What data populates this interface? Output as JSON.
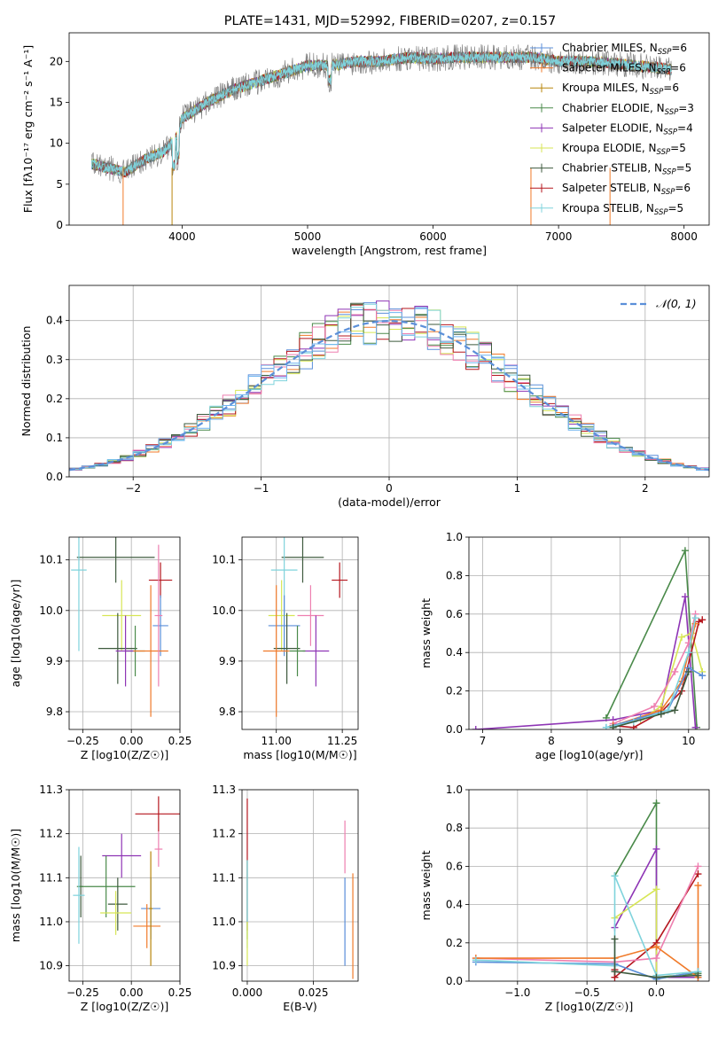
{
  "figure_title": "PLATE=1431, MJD=52992, FIBERID=0207, z=0.157",
  "colors": {
    "Chabrier MILES": "#5b8fd9",
    "Salpeter MILES": "#f07a2a",
    "Kroupa MILES": "#b8860b",
    "Chabrier ELODIE": "#4a8a4a",
    "Salpeter ELODIE": "#8e35b5",
    "Kroupa ELODIE": "#d7e655",
    "Chabrier STELIB": "#3e5a3e",
    "Salpeter STELIB": "#b5161e",
    "Kroupa STELIB": "#7fd3dc",
    "extra_pink": "#ee7fb0",
    "extra_lightblue": "#6fb4f0",
    "data_gray": "#777777"
  },
  "chart_data": [
    {
      "type": "line",
      "panel": "spectrum",
      "title": "PLATE=1431, MJD=52992, FIBERID=0207, z=0.157",
      "xlabel": "wavelength [Angstrom, rest frame]",
      "ylabel": "Flux [fλ10⁻¹⁷ erg cm⁻² s⁻¹ A⁻¹]",
      "xlim": [
        3100,
        8200
      ],
      "ylim": [
        0,
        23.5
      ],
      "xticks": [
        4000,
        5000,
        6000,
        7000,
        8000
      ],
      "yticks": [
        0,
        5,
        10,
        15,
        20
      ],
      "grid": false,
      "legend_position": "top-right",
      "legend": [
        "Chabrier MILES, N_SSP=6",
        "Salpeter MILES, N_SSP=6",
        "Kroupa MILES, N_SSP=6",
        "Chabrier ELODIE, N_SSP=3",
        "Salpeter ELODIE, N_SSP=4",
        "Kroupa ELODIE, N_SSP=5",
        "Chabrier STELIB, N_SSP=5",
        "Salpeter STELIB, N_SSP=6",
        "Kroupa STELIB, N_SSP=5"
      ],
      "legend_base": [
        "Chabrier MILES, N",
        "Salpeter MILES, N",
        "Kroupa MILES, N",
        "Chabrier ELODIE, N",
        "Salpeter ELODIE, N",
        "Kroupa ELODIE, N",
        "Chabrier STELIB, N",
        "Salpeter STELIB, N",
        "Kroupa STELIB, N"
      ],
      "legend_n": [
        "=6",
        "=6",
        "=6",
        "=3",
        "=4",
        "=5",
        "=5",
        "=6",
        "=5"
      ],
      "legend_sub": "SSP",
      "continuum": {
        "x": [
          3280,
          3400,
          3550,
          3700,
          3850,
          3950,
          4000,
          4100,
          4200,
          4400,
          4600,
          4800,
          5000,
          5200,
          5400,
          5600,
          5800,
          6000,
          6200,
          6400,
          6600,
          6800,
          7000,
          7200,
          7400,
          7600,
          7800,
          7900
        ],
        "y": [
          7.5,
          7.0,
          6.5,
          8.0,
          9.0,
          10.5,
          13.0,
          14.0,
          15.0,
          16.5,
          17.5,
          18.5,
          19.5,
          19.5,
          20.0,
          20.0,
          20.5,
          20.3,
          20.5,
          20.5,
          20.5,
          20.5,
          20.0,
          20.0,
          19.8,
          19.5,
          19.2,
          19.0
        ]
      },
      "dips": [
        {
          "x": 3530,
          "color": "#f07a2a"
        },
        {
          "x": 3920,
          "color": "#b8860b"
        },
        {
          "x": 6780,
          "color": "#f07a2a"
        },
        {
          "x": 7410,
          "color": "#f07a2a"
        }
      ]
    },
    {
      "type": "step",
      "panel": "residual_histogram",
      "xlabel": "(data-model)/error",
      "ylabel": "Normed distribution",
      "xlim": [
        -2.5,
        2.5
      ],
      "ylim": [
        0,
        0.49
      ],
      "xticks": [
        -2,
        -1,
        0,
        1,
        2
      ],
      "yticks": [
        0.0,
        0.1,
        0.2,
        0.3,
        0.4
      ],
      "grid": true,
      "legend": [
        "N(0, 1)"
      ],
      "legend_position": "top-right",
      "bin_width": 0.1,
      "bin_start": -2.5
    },
    {
      "type": "scatter",
      "panel": "age_vs_Z",
      "xlabel": "Z [log10(Z/Z☉)]",
      "ylabel": "age  [log10(age/yr)]",
      "xlim": [
        -0.32,
        0.25
      ],
      "ylim": [
        9.765,
        10.145
      ],
      "xticks": [
        -0.25,
        0.0,
        0.25
      ],
      "yticks": [
        9.8,
        9.9,
        10.0,
        10.1
      ],
      "grid": true,
      "points": [
        {
          "x": -0.08,
          "y": 10.105,
          "xerr": 0.2,
          "yerr": 0.05,
          "color": "#3e5a3e"
        },
        {
          "x": -0.27,
          "y": 10.08,
          "xerr": 0.04,
          "yerr": 0.16,
          "color": "#7fd3dc"
        },
        {
          "x": 0.15,
          "y": 10.06,
          "xerr": 0.06,
          "yerr": 0.035,
          "color": "#b5161e"
        },
        {
          "x": -0.05,
          "y": 9.99,
          "xerr": 0.1,
          "yerr": 0.07,
          "color": "#d7e655"
        },
        {
          "x": 0.15,
          "y": 9.97,
          "xerr": 0.04,
          "yerr": 0.06,
          "color": "#5b8fd9"
        },
        {
          "x": -0.07,
          "y": 9.925,
          "xerr": 0.1,
          "yerr": 0.07,
          "color": "#3e5a3e"
        },
        {
          "x": 0.02,
          "y": 9.92,
          "xerr": 0.05,
          "yerr": 0.05,
          "color": "#4a8a4a"
        },
        {
          "x": -0.03,
          "y": 9.92,
          "xerr": 0.05,
          "yerr": 0.07,
          "color": "#8e35b5"
        },
        {
          "x": 0.1,
          "y": 9.92,
          "xerr": 0.09,
          "yerr": 0.13,
          "color": "#f07a2a"
        },
        {
          "x": 0.14,
          "y": 9.99,
          "xerr": 0.02,
          "yerr": 0.14,
          "color": "#ee7fb0"
        }
      ]
    },
    {
      "type": "scatter",
      "panel": "age_vs_mass",
      "xlabel": "mass [log10(M/M☉)]",
      "ylabel": "",
      "xlim": [
        10.87,
        11.31
      ],
      "ylim": [
        9.765,
        10.145
      ],
      "xticks": [
        11.0,
        11.25
      ],
      "yticks": [
        9.8,
        9.9,
        10.0,
        10.1
      ],
      "grid": true,
      "points": [
        {
          "x": 11.1,
          "y": 10.105,
          "xerr": 0.08,
          "yerr": 0.05,
          "color": "#3e5a3e"
        },
        {
          "x": 11.03,
          "y": 10.08,
          "xerr": 0.05,
          "yerr": 0.16,
          "color": "#7fd3dc"
        },
        {
          "x": 11.24,
          "y": 10.06,
          "xerr": 0.03,
          "yerr": 0.035,
          "color": "#b5161e"
        },
        {
          "x": 11.02,
          "y": 9.99,
          "xerr": 0.05,
          "yerr": 0.07,
          "color": "#d7e655"
        },
        {
          "x": 11.13,
          "y": 9.99,
          "xerr": 0.05,
          "yerr": 0.06,
          "color": "#ee7fb0"
        },
        {
          "x": 11.03,
          "y": 9.97,
          "xerr": 0.06,
          "yerr": 0.06,
          "color": "#5b8fd9"
        },
        {
          "x": 11.04,
          "y": 9.925,
          "xerr": 0.05,
          "yerr": 0.07,
          "color": "#3e5a3e"
        },
        {
          "x": 11.15,
          "y": 9.92,
          "xerr": 0.05,
          "yerr": 0.07,
          "color": "#8e35b5"
        },
        {
          "x": 11.0,
          "y": 9.92,
          "xerr": 0.05,
          "yerr": 0.13,
          "color": "#f07a2a"
        },
        {
          "x": 11.08,
          "y": 9.92,
          "xerr": 0.03,
          "yerr": 0.05,
          "color": "#4a8a4a"
        }
      ]
    },
    {
      "type": "line",
      "panel": "massweight_vs_age",
      "xlabel": "age  [log10(age/yr)]",
      "ylabel": "mass weight",
      "xlim": [
        6.8,
        10.3
      ],
      "ylim": [
        0,
        1
      ],
      "xticks": [
        7,
        8,
        9,
        10
      ],
      "yticks": [
        0.0,
        0.2,
        0.4,
        0.6,
        0.8,
        1.0
      ],
      "grid": true,
      "series": [
        {
          "color": "#4a8a4a",
          "x": [
            8.8,
            9.95,
            10.12
          ],
          "y": [
            0.06,
            0.93,
            0.01
          ]
        },
        {
          "color": "#8e35b5",
          "x": [
            6.9,
            8.9,
            9.6,
            9.95,
            10.1
          ],
          "y": [
            0.0,
            0.05,
            0.1,
            0.69,
            0.01
          ]
        },
        {
          "color": "#d7e655",
          "x": [
            8.9,
            9.3,
            9.6,
            9.9,
            10.05,
            10.2
          ],
          "y": [
            0.02,
            0.05,
            0.12,
            0.48,
            0.5,
            0.3
          ]
        },
        {
          "color": "#b5161e",
          "x": [
            8.9,
            9.2,
            9.6,
            9.9,
            10.15,
            10.2
          ],
          "y": [
            0.02,
            0.01,
            0.09,
            0.2,
            0.56,
            0.57
          ]
        },
        {
          "color": "#ee7fb0",
          "x": [
            8.9,
            9.5,
            9.8,
            10.0,
            10.1
          ],
          "y": [
            0.03,
            0.12,
            0.3,
            0.45,
            0.6
          ]
        },
        {
          "color": "#f07a2a",
          "x": [
            8.9,
            9.6,
            9.9,
            10.1
          ],
          "y": [
            0.02,
            0.1,
            0.25,
            0.55
          ]
        },
        {
          "color": "#5b8fd9",
          "x": [
            8.8,
            9.3,
            9.7,
            10.0,
            10.2
          ],
          "y": [
            0.01,
            0.06,
            0.1,
            0.32,
            0.28
          ]
        },
        {
          "color": "#7fd3dc",
          "x": [
            8.8,
            9.2,
            9.7,
            10.0,
            10.1
          ],
          "y": [
            0.01,
            0.04,
            0.1,
            0.4,
            0.58
          ]
        },
        {
          "color": "#3e5a3e",
          "x": [
            8.9,
            9.6,
            9.8,
            10.0
          ],
          "y": [
            0.01,
            0.08,
            0.1,
            0.3
          ]
        }
      ]
    },
    {
      "type": "scatter",
      "panel": "mass_vs_Z",
      "xlabel": "Z [log10(Z/Z☉)]",
      "ylabel": "mass [log10(M/M☉)]",
      "xlim": [
        -0.32,
        0.25
      ],
      "ylim": [
        10.865,
        11.3
      ],
      "xticks": [
        -0.25,
        0.0,
        0.25
      ],
      "yticks": [
        10.9,
        11.0,
        11.1,
        11.2,
        11.3
      ],
      "grid": true,
      "points": [
        {
          "x": 0.14,
          "y": 11.245,
          "xerr": 0.12,
          "yerr": 0.04,
          "color": "#b5161e"
        },
        {
          "x": -0.05,
          "y": 11.15,
          "xerr": 0.1,
          "yerr": 0.05,
          "color": "#8e35b5"
        },
        {
          "x": 0.14,
          "y": 11.165,
          "xerr": 0.02,
          "yerr": 0.04,
          "color": "#ee7fb0"
        },
        {
          "x": -0.26,
          "y": 11.08,
          "xerr": 0.01,
          "yerr": 0.07,
          "color": "#3e5a3e"
        },
        {
          "x": -0.13,
          "y": 11.08,
          "xerr": 0.15,
          "yerr": 0.07,
          "color": "#4a8a4a"
        },
        {
          "x": -0.27,
          "y": 11.06,
          "xerr": 0.03,
          "yerr": 0.11,
          "color": "#7fd3dc"
        },
        {
          "x": -0.07,
          "y": 11.04,
          "xerr": 0.05,
          "yerr": 0.06,
          "color": "#3e5a3e"
        },
        {
          "x": 0.1,
          "y": 11.03,
          "xerr": 0.05,
          "yerr": 0.07,
          "color": "#5b8fd9"
        },
        {
          "x": -0.08,
          "y": 11.02,
          "xerr": 0.08,
          "yerr": 0.05,
          "color": "#d7e655"
        },
        {
          "x": 0.08,
          "y": 10.99,
          "xerr": 0.07,
          "yerr": 0.05,
          "color": "#f07a2a"
        },
        {
          "x": 0.1,
          "y": 11.03,
          "xerr": 0.01,
          "yerr": 0.13,
          "color": "#b8860b"
        }
      ]
    },
    {
      "type": "scatter",
      "panel": "mass_vs_EBV",
      "xlabel": "E(B-V)",
      "ylabel": "",
      "xlim": [
        -0.002,
        0.042
      ],
      "ylim": [
        10.865,
        11.3
      ],
      "xticks": [
        0.0,
        0.025
      ],
      "yticks": [
        10.9,
        11.0,
        11.1,
        11.2,
        11.3
      ],
      "grid": true,
      "points": [
        {
          "x": 0.0,
          "y": 11.13,
          "yerr": 0.15,
          "color": "#b5161e"
        },
        {
          "x": 0.0,
          "y": 11.05,
          "yerr": 0.09,
          "color": "#4a8a4a"
        },
        {
          "x": 0.0,
          "y": 11.04,
          "yerr": 0.1,
          "color": "#7fd3dc"
        },
        {
          "x": 0.0,
          "y": 10.95,
          "yerr": 0.05,
          "color": "#d7e655"
        },
        {
          "x": 0.037,
          "y": 11.17,
          "yerr": 0.06,
          "color": "#ee7fb0"
        },
        {
          "x": 0.037,
          "y": 11.0,
          "yerr": 0.1,
          "color": "#5b8fd9"
        },
        {
          "x": 0.04,
          "y": 10.99,
          "yerr": 0.12,
          "color": "#f07a2a"
        }
      ]
    },
    {
      "type": "line",
      "panel": "massweight_vs_Z",
      "xlabel": "Z [log10(Z/Z☉)]",
      "ylabel": "mass weight",
      "xlim": [
        -1.35,
        0.38
      ],
      "ylim": [
        0,
        1
      ],
      "xticks": [
        -1.0,
        -0.5,
        0.0
      ],
      "yticks": [
        0.0,
        0.2,
        0.4,
        0.6,
        0.8,
        1.0
      ],
      "grid": true,
      "series": [
        {
          "color": "#4a8a4a",
          "x": [
            -0.3,
            0.0,
            0.0,
            0.3
          ],
          "y": [
            0.55,
            0.93,
            0.02,
            0.04
          ]
        },
        {
          "color": "#8e35b5",
          "x": [
            -0.3,
            0.0,
            0.0,
            0.3
          ],
          "y": [
            0.28,
            0.69,
            0.02,
            0.02
          ]
        },
        {
          "color": "#d7e655",
          "x": [
            -0.3,
            0.0,
            0.0,
            0.3
          ],
          "y": [
            0.33,
            0.48,
            0.01,
            0.05
          ]
        },
        {
          "color": "#b5161e",
          "x": [
            -0.3,
            -0.3,
            0.0,
            0.3
          ],
          "y": [
            0.06,
            0.02,
            0.2,
            0.56
          ]
        },
        {
          "color": "#ee7fb0",
          "x": [
            -1.3,
            -0.3,
            0.0,
            0.3
          ],
          "y": [
            0.12,
            0.1,
            0.12,
            0.6
          ]
        },
        {
          "color": "#f07a2a",
          "x": [
            -1.3,
            -0.3,
            0.0,
            0.3,
            0.3
          ],
          "y": [
            0.12,
            0.12,
            0.18,
            0.02,
            0.5
          ]
        },
        {
          "color": "#5b8fd9",
          "x": [
            -1.3,
            -0.3,
            0.0,
            0.3
          ],
          "y": [
            0.1,
            0.09,
            0.01,
            0.05
          ]
        },
        {
          "color": "#7fd3dc",
          "x": [
            -1.3,
            -0.3,
            -0.3,
            0.0,
            0.3
          ],
          "y": [
            0.11,
            0.08,
            0.55,
            0.03,
            0.05
          ]
        },
        {
          "color": "#3e5a3e",
          "x": [
            -0.3,
            -0.3,
            0.0,
            0.3
          ],
          "y": [
            0.22,
            0.05,
            0.02,
            0.03
          ]
        }
      ]
    }
  ]
}
